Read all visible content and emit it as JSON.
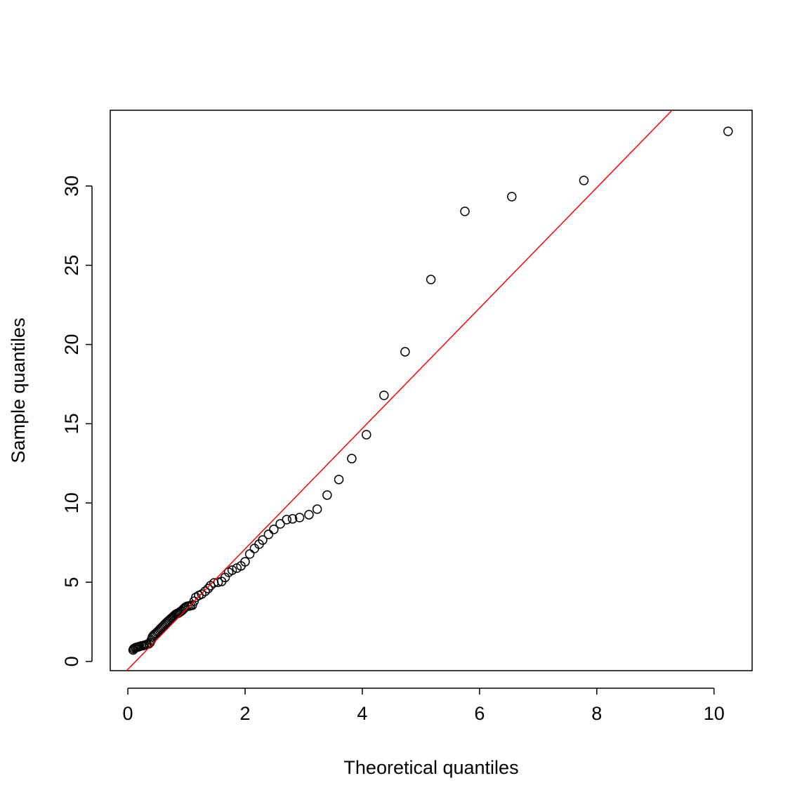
{
  "chart_data": {
    "type": "scatter",
    "x_label": "Theoretical quantiles",
    "y_label": "Sample quantiles",
    "x": [
      0.09,
      0.1,
      0.12,
      0.14,
      0.16,
      0.18,
      0.2,
      0.23,
      0.26,
      0.28,
      0.31,
      0.33,
      0.36,
      0.38,
      0.4,
      0.42,
      0.44,
      0.46,
      0.48,
      0.5,
      0.52,
      0.54,
      0.56,
      0.58,
      0.6,
      0.62,
      0.64,
      0.66,
      0.68,
      0.7,
      0.72,
      0.74,
      0.76,
      0.78,
      0.8,
      0.82,
      0.84,
      0.86,
      0.88,
      0.9,
      0.92,
      0.94,
      0.96,
      0.98,
      1.01,
      1.04,
      1.07,
      1.1,
      1.13,
      1.16,
      1.21,
      1.26,
      1.32,
      1.37,
      1.41,
      1.47,
      1.54,
      1.6,
      1.66,
      1.72,
      1.78,
      1.86,
      1.93,
      2.0,
      2.08,
      2.16,
      2.24,
      2.3,
      2.4,
      2.49,
      2.6,
      2.71,
      2.81,
      2.93,
      3.09,
      3.23,
      3.4,
      3.6,
      3.82,
      4.07,
      4.37,
      4.73,
      5.17,
      5.75,
      6.55,
      7.78,
      10.24
    ],
    "values": [
      0.72,
      0.8,
      0.85,
      0.88,
      0.9,
      0.92,
      0.95,
      0.98,
      1.0,
      1.02,
      1.05,
      1.08,
      1.12,
      1.2,
      1.35,
      1.55,
      1.65,
      1.72,
      1.78,
      1.85,
      1.92,
      2.0,
      2.08,
      2.15,
      2.22,
      2.3,
      2.38,
      2.45,
      2.52,
      2.58,
      2.65,
      2.72,
      2.78,
      2.85,
      2.92,
      2.98,
      3.02,
      3.05,
      3.1,
      3.15,
      3.2,
      3.28,
      3.35,
      3.42,
      3.48,
      3.5,
      3.52,
      3.55,
      3.8,
      4.05,
      4.16,
      4.25,
      4.43,
      4.6,
      4.78,
      4.96,
      5.0,
      5.05,
      5.3,
      5.63,
      5.76,
      5.89,
      6.03,
      6.29,
      6.78,
      7.13,
      7.4,
      7.66,
      8.02,
      8.33,
      8.68,
      8.95,
      9.0,
      9.08,
      9.26,
      9.61,
      10.5,
      11.48,
      12.8,
      14.31,
      16.79,
      19.54,
      24.1,
      28.4,
      29.33,
      30.35,
      33.45
    ],
    "color": "#000000",
    "reference_line": {
      "intercept": -0.5,
      "slope": 3.8,
      "color": "#ff0000"
    },
    "xlim": [
      -0.3,
      10.65
    ],
    "ylim": [
      -0.58,
      34.78
    ],
    "xticks": [
      0,
      2,
      4,
      6,
      8,
      10
    ],
    "yticks": [
      0,
      5,
      10,
      15,
      20,
      25,
      30
    ],
    "grid": false
  }
}
